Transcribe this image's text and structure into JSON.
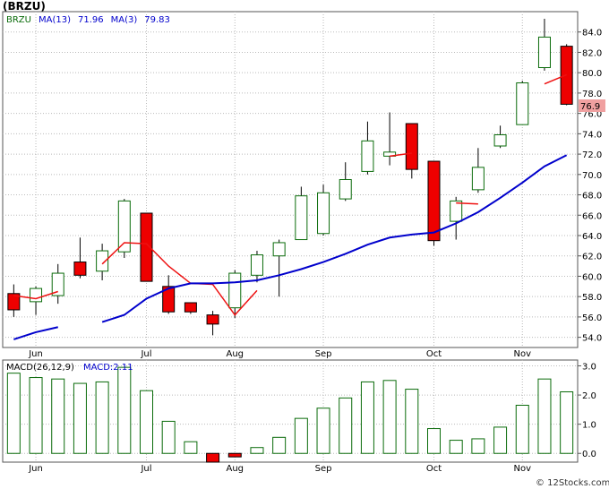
{
  "title": "(BRZU)",
  "footer": "© 12Stocks.com",
  "chart_data": [
    {
      "type": "candlestick",
      "legend": [
        {
          "text": "BRZU",
          "color": "#0a6b0a"
        },
        {
          "text": "MA(13)",
          "color": "#0000cc"
        },
        {
          "text": "71.96",
          "color": "#0000cc"
        },
        {
          "text": "MA(3)",
          "color": "#0000cc"
        },
        {
          "text": "79.83",
          "color": "#0000cc"
        }
      ],
      "ylim": [
        53,
        86
      ],
      "yticks": [
        "84.0",
        "82.0",
        "80.0",
        "78.0",
        "76.0",
        "74.0",
        "72.0",
        "70.0",
        "68.0",
        "66.0",
        "64.0",
        "62.0",
        "60.0",
        "58.0",
        "56.0",
        "54.0"
      ],
      "last_price": "76.9",
      "months": [
        {
          "label": "Jun",
          "index": 1
        },
        {
          "label": "Jul",
          "index": 6
        },
        {
          "label": "Aug",
          "index": 10
        },
        {
          "label": "Sep",
          "index": 14
        },
        {
          "label": "Oct",
          "index": 19
        },
        {
          "label": "Nov",
          "index": 23
        }
      ],
      "candles": [
        {
          "o": 58.3,
          "h": 59.2,
          "l": 56.0,
          "c": 56.7,
          "up": false
        },
        {
          "o": 57.5,
          "h": 59.0,
          "l": 56.2,
          "c": 58.8,
          "up": true
        },
        {
          "o": 58.1,
          "h": 61.2,
          "l": 57.3,
          "c": 60.3,
          "up": true
        },
        {
          "o": 60.1,
          "h": 63.8,
          "l": 59.8,
          "c": 61.4,
          "up": false
        },
        {
          "o": 60.5,
          "h": 63.2,
          "l": 59.6,
          "c": 62.5,
          "up": true
        },
        {
          "o": 62.4,
          "h": 67.6,
          "l": 61.8,
          "c": 67.4,
          "up": true
        },
        {
          "o": 66.2,
          "h": 66.2,
          "l": 59.6,
          "c": 59.5,
          "up": false
        },
        {
          "o": 59.0,
          "h": 60.1,
          "l": 56.3,
          "c": 56.5,
          "up": false
        },
        {
          "o": 57.4,
          "h": 57.4,
          "l": 56.3,
          "c": 56.5,
          "up": false
        },
        {
          "o": 56.2,
          "h": 56.6,
          "l": 54.2,
          "c": 55.3,
          "up": false
        },
        {
          "o": 56.9,
          "h": 60.6,
          "l": 55.9,
          "c": 60.3,
          "up": true
        },
        {
          "o": 60.1,
          "h": 62.5,
          "l": 59.4,
          "c": 62.1,
          "up": true
        },
        {
          "o": 62.0,
          "h": 63.6,
          "l": 58.0,
          "c": 63.3,
          "up": true
        },
        {
          "o": 63.6,
          "h": 68.8,
          "l": 63.6,
          "c": 67.9,
          "up": true
        },
        {
          "o": 64.2,
          "h": 69.0,
          "l": 64.0,
          "c": 68.2,
          "up": true
        },
        {
          "o": 67.6,
          "h": 71.2,
          "l": 67.4,
          "c": 69.5,
          "up": true
        },
        {
          "o": 70.3,
          "h": 75.2,
          "l": 70.0,
          "c": 73.3,
          "up": true
        },
        {
          "o": 71.8,
          "h": 76.1,
          "l": 70.9,
          "c": 72.2,
          "up": true
        },
        {
          "o": 75.0,
          "h": 75.0,
          "l": 69.6,
          "c": 70.5,
          "up": false
        },
        {
          "o": 71.3,
          "h": 71.3,
          "l": 63.0,
          "c": 63.5,
          "up": false
        },
        {
          "o": 65.4,
          "h": 67.8,
          "l": 63.6,
          "c": 67.4,
          "up": true
        },
        {
          "o": 68.5,
          "h": 72.6,
          "l": 68.2,
          "c": 70.7,
          "up": true
        },
        {
          "o": 72.8,
          "h": 74.8,
          "l": 72.6,
          "c": 73.9,
          "up": true
        },
        {
          "o": 74.9,
          "h": 79.2,
          "l": 74.9,
          "c": 79.0,
          "up": true
        },
        {
          "o": 80.5,
          "h": 85.3,
          "l": 80.2,
          "c": 83.5,
          "up": true
        },
        {
          "o": 82.6,
          "h": 82.8,
          "l": 76.8,
          "c": 76.9,
          "up": false
        }
      ],
      "ma3": [
        58.1,
        57.8,
        58.5,
        null,
        61.2,
        63.3,
        63.2,
        61.0,
        59.3,
        59.2,
        56.2,
        58.6,
        null,
        null,
        null,
        null,
        null,
        71.8,
        72.1,
        null,
        67.2,
        67.1,
        null,
        null,
        78.9,
        79.8
      ],
      "ma13": [
        53.8,
        54.5,
        55.0,
        null,
        55.5,
        56.2,
        57.8,
        58.8,
        59.3,
        59.3,
        59.4,
        59.6,
        60.1,
        60.7,
        61.4,
        62.2,
        63.1,
        63.8,
        64.1,
        64.3,
        65.2,
        66.3,
        67.7,
        69.2,
        70.8,
        71.9
      ]
    },
    {
      "type": "bar",
      "legend": [
        {
          "text": "MACD(26,12,9)",
          "color": "#000000"
        },
        {
          "text": "MACD:2.11",
          "color": "#0000cc"
        }
      ],
      "ylim": [
        -0.3,
        3.2
      ],
      "yticks": [
        "3.0",
        "2.0",
        "1.0",
        "0.0"
      ],
      "values": [
        2.75,
        2.6,
        2.55,
        2.4,
        2.45,
        2.95,
        2.15,
        1.1,
        0.4,
        -0.3,
        -0.12,
        0.2,
        0.55,
        1.2,
        1.55,
        1.9,
        2.45,
        2.5,
        2.2,
        0.85,
        0.45,
        0.5,
        0.9,
        1.65,
        2.55,
        2.11
      ]
    }
  ]
}
